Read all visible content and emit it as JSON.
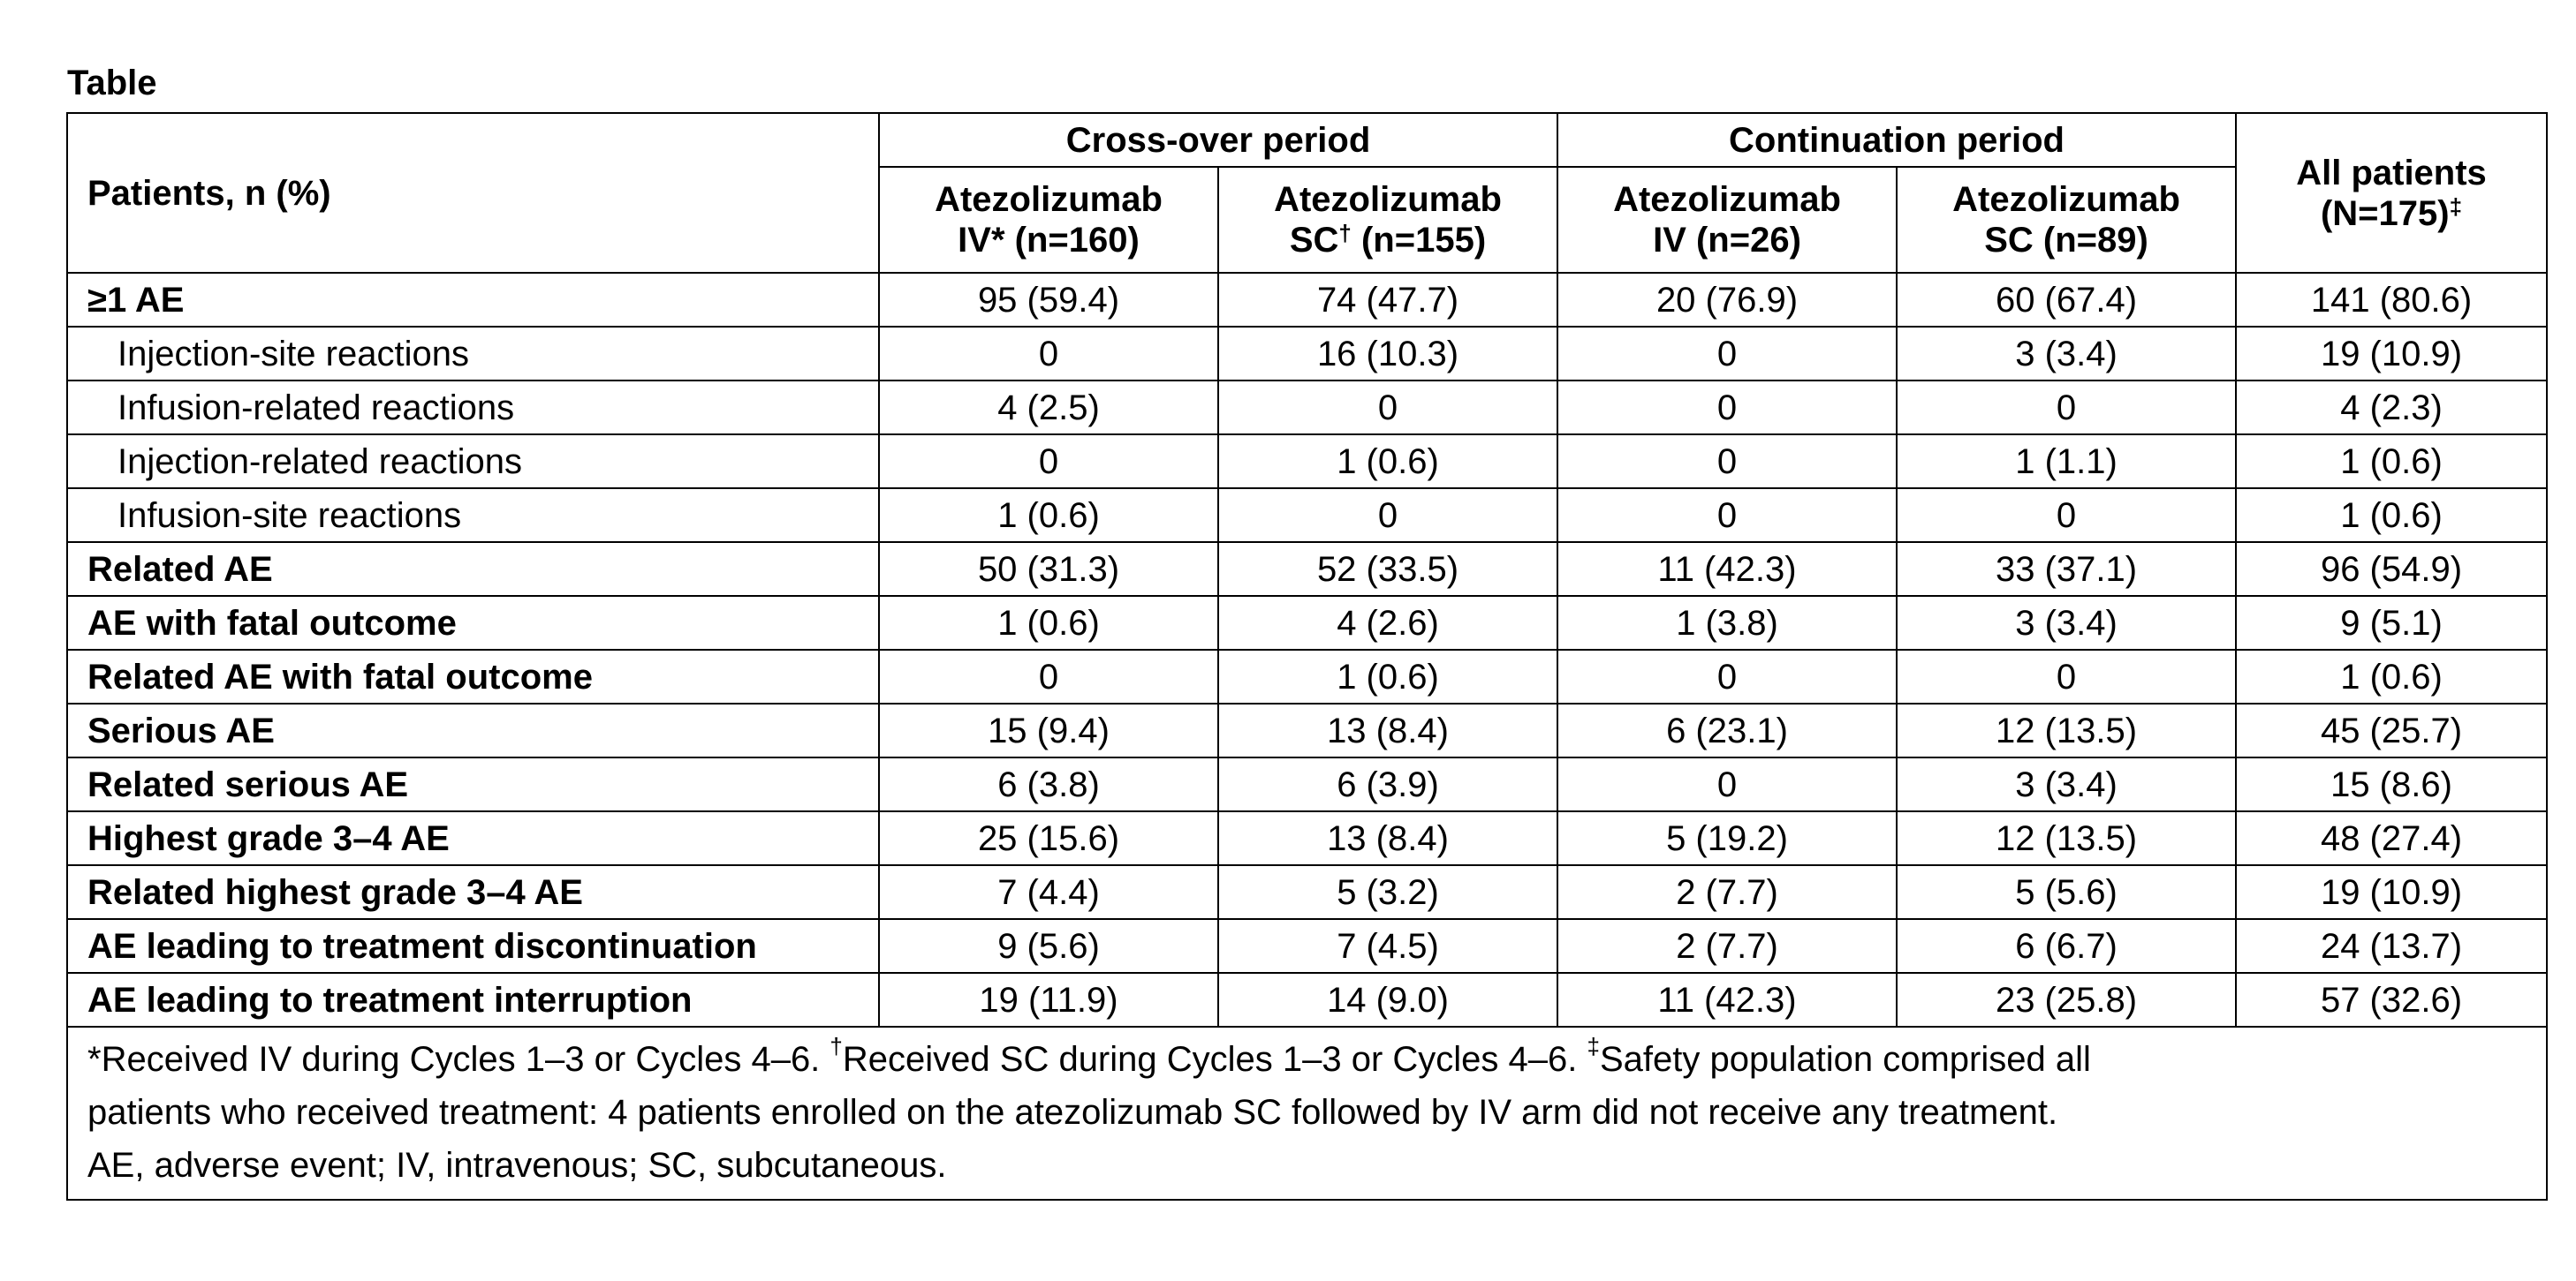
{
  "title": "Table",
  "header": {
    "row_label": "Patients, n (%)",
    "groups": [
      {
        "label": "Cross-over period"
      },
      {
        "label": "Continuation period"
      }
    ],
    "all_patients": {
      "line1": "All patients",
      "line2": "(N=175)",
      "mark": "‡"
    },
    "columns": [
      {
        "line1": "Atezolizumab",
        "line2_pre": "IV* (n=160)",
        "mark": "",
        "line2_post": ""
      },
      {
        "line1": "Atezolizumab",
        "line2_pre": "SC",
        "mark": "†",
        "line2_post": " (n=155)"
      },
      {
        "line1": "Atezolizumab",
        "line2_pre": "IV (n=26)",
        "mark": "",
        "line2_post": ""
      },
      {
        "line1": "Atezolizumab",
        "line2_pre": "SC (n=89)",
        "mark": "",
        "line2_post": ""
      }
    ]
  },
  "rows": [
    {
      "label": "≥1 AE",
      "bold": true,
      "values": [
        "95 (59.4)",
        "74 (47.7)",
        "20 (76.9)",
        "60 (67.4)",
        "141 (80.6)"
      ]
    },
    {
      "label": "Injection-site reactions",
      "bold": false,
      "values": [
        "0",
        "16 (10.3)",
        "0",
        "3 (3.4)",
        "19 (10.9)"
      ]
    },
    {
      "label": "Infusion-related reactions",
      "bold": false,
      "values": [
        "4 (2.5)",
        "0",
        "0",
        "0",
        "4 (2.3)"
      ]
    },
    {
      "label": "Injection-related reactions",
      "bold": false,
      "values": [
        "0",
        "1 (0.6)",
        "0",
        "1 (1.1)",
        "1 (0.6)"
      ]
    },
    {
      "label": "Infusion-site reactions",
      "bold": false,
      "values": [
        "1 (0.6)",
        "0",
        "0",
        "0",
        "1 (0.6)"
      ]
    },
    {
      "label": "Related AE",
      "bold": true,
      "values": [
        "50 (31.3)",
        "52 (33.5)",
        "11 (42.3)",
        "33 (37.1)",
        "96 (54.9)"
      ]
    },
    {
      "label": "AE with fatal outcome",
      "bold": true,
      "values": [
        "1 (0.6)",
        "4 (2.6)",
        "1 (3.8)",
        "3 (3.4)",
        "9 (5.1)"
      ]
    },
    {
      "label": "Related AE with fatal outcome",
      "bold": true,
      "values": [
        "0",
        "1 (0.6)",
        "0",
        "0",
        "1 (0.6)"
      ]
    },
    {
      "label": "Serious AE",
      "bold": true,
      "values": [
        "15 (9.4)",
        "13 (8.4)",
        "6 (23.1)",
        "12 (13.5)",
        "45 (25.7)"
      ]
    },
    {
      "label": "Related serious AE",
      "bold": true,
      "values": [
        "6 (3.8)",
        "6 (3.9)",
        "0",
        "3 (3.4)",
        "15 (8.6)"
      ]
    },
    {
      "label": "Highest grade 3–4 AE",
      "bold": true,
      "values": [
        "25 (15.6)",
        "13 (8.4)",
        "5 (19.2)",
        "12 (13.5)",
        "48 (27.4)"
      ]
    },
    {
      "label": "Related highest grade 3–4 AE",
      "bold": true,
      "values": [
        "7 (4.4)",
        "5 (3.2)",
        "2 (7.7)",
        "5 (5.6)",
        "19 (10.9)"
      ]
    },
    {
      "label": "AE leading to treatment discontinuation",
      "bold": true,
      "values": [
        "9 (5.6)",
        "7 (4.5)",
        "2 (7.7)",
        "6 (6.7)",
        "24 (13.7)"
      ]
    },
    {
      "label": "AE leading to treatment interruption",
      "bold": true,
      "values": [
        "19 (11.9)",
        "14 (9.0)",
        "11 (42.3)",
        "23 (25.8)",
        "57 (32.6)"
      ]
    }
  ],
  "footnotes": {
    "line1": [
      {
        "sup": "",
        "text": "*Received IV during Cycles 1–3 or Cycles 4–6. "
      },
      {
        "sup": "†",
        "text": "Received SC during Cycles 1–3 or Cycles 4–6. "
      },
      {
        "sup": "‡",
        "text": "Safety population comprised all"
      }
    ],
    "line2": "patients who received treatment: 4 patients enrolled on the atezolizumab SC followed by IV arm did not receive any treatment.",
    "line3": "AE, adverse event; IV, intravenous; SC, subcutaneous."
  }
}
